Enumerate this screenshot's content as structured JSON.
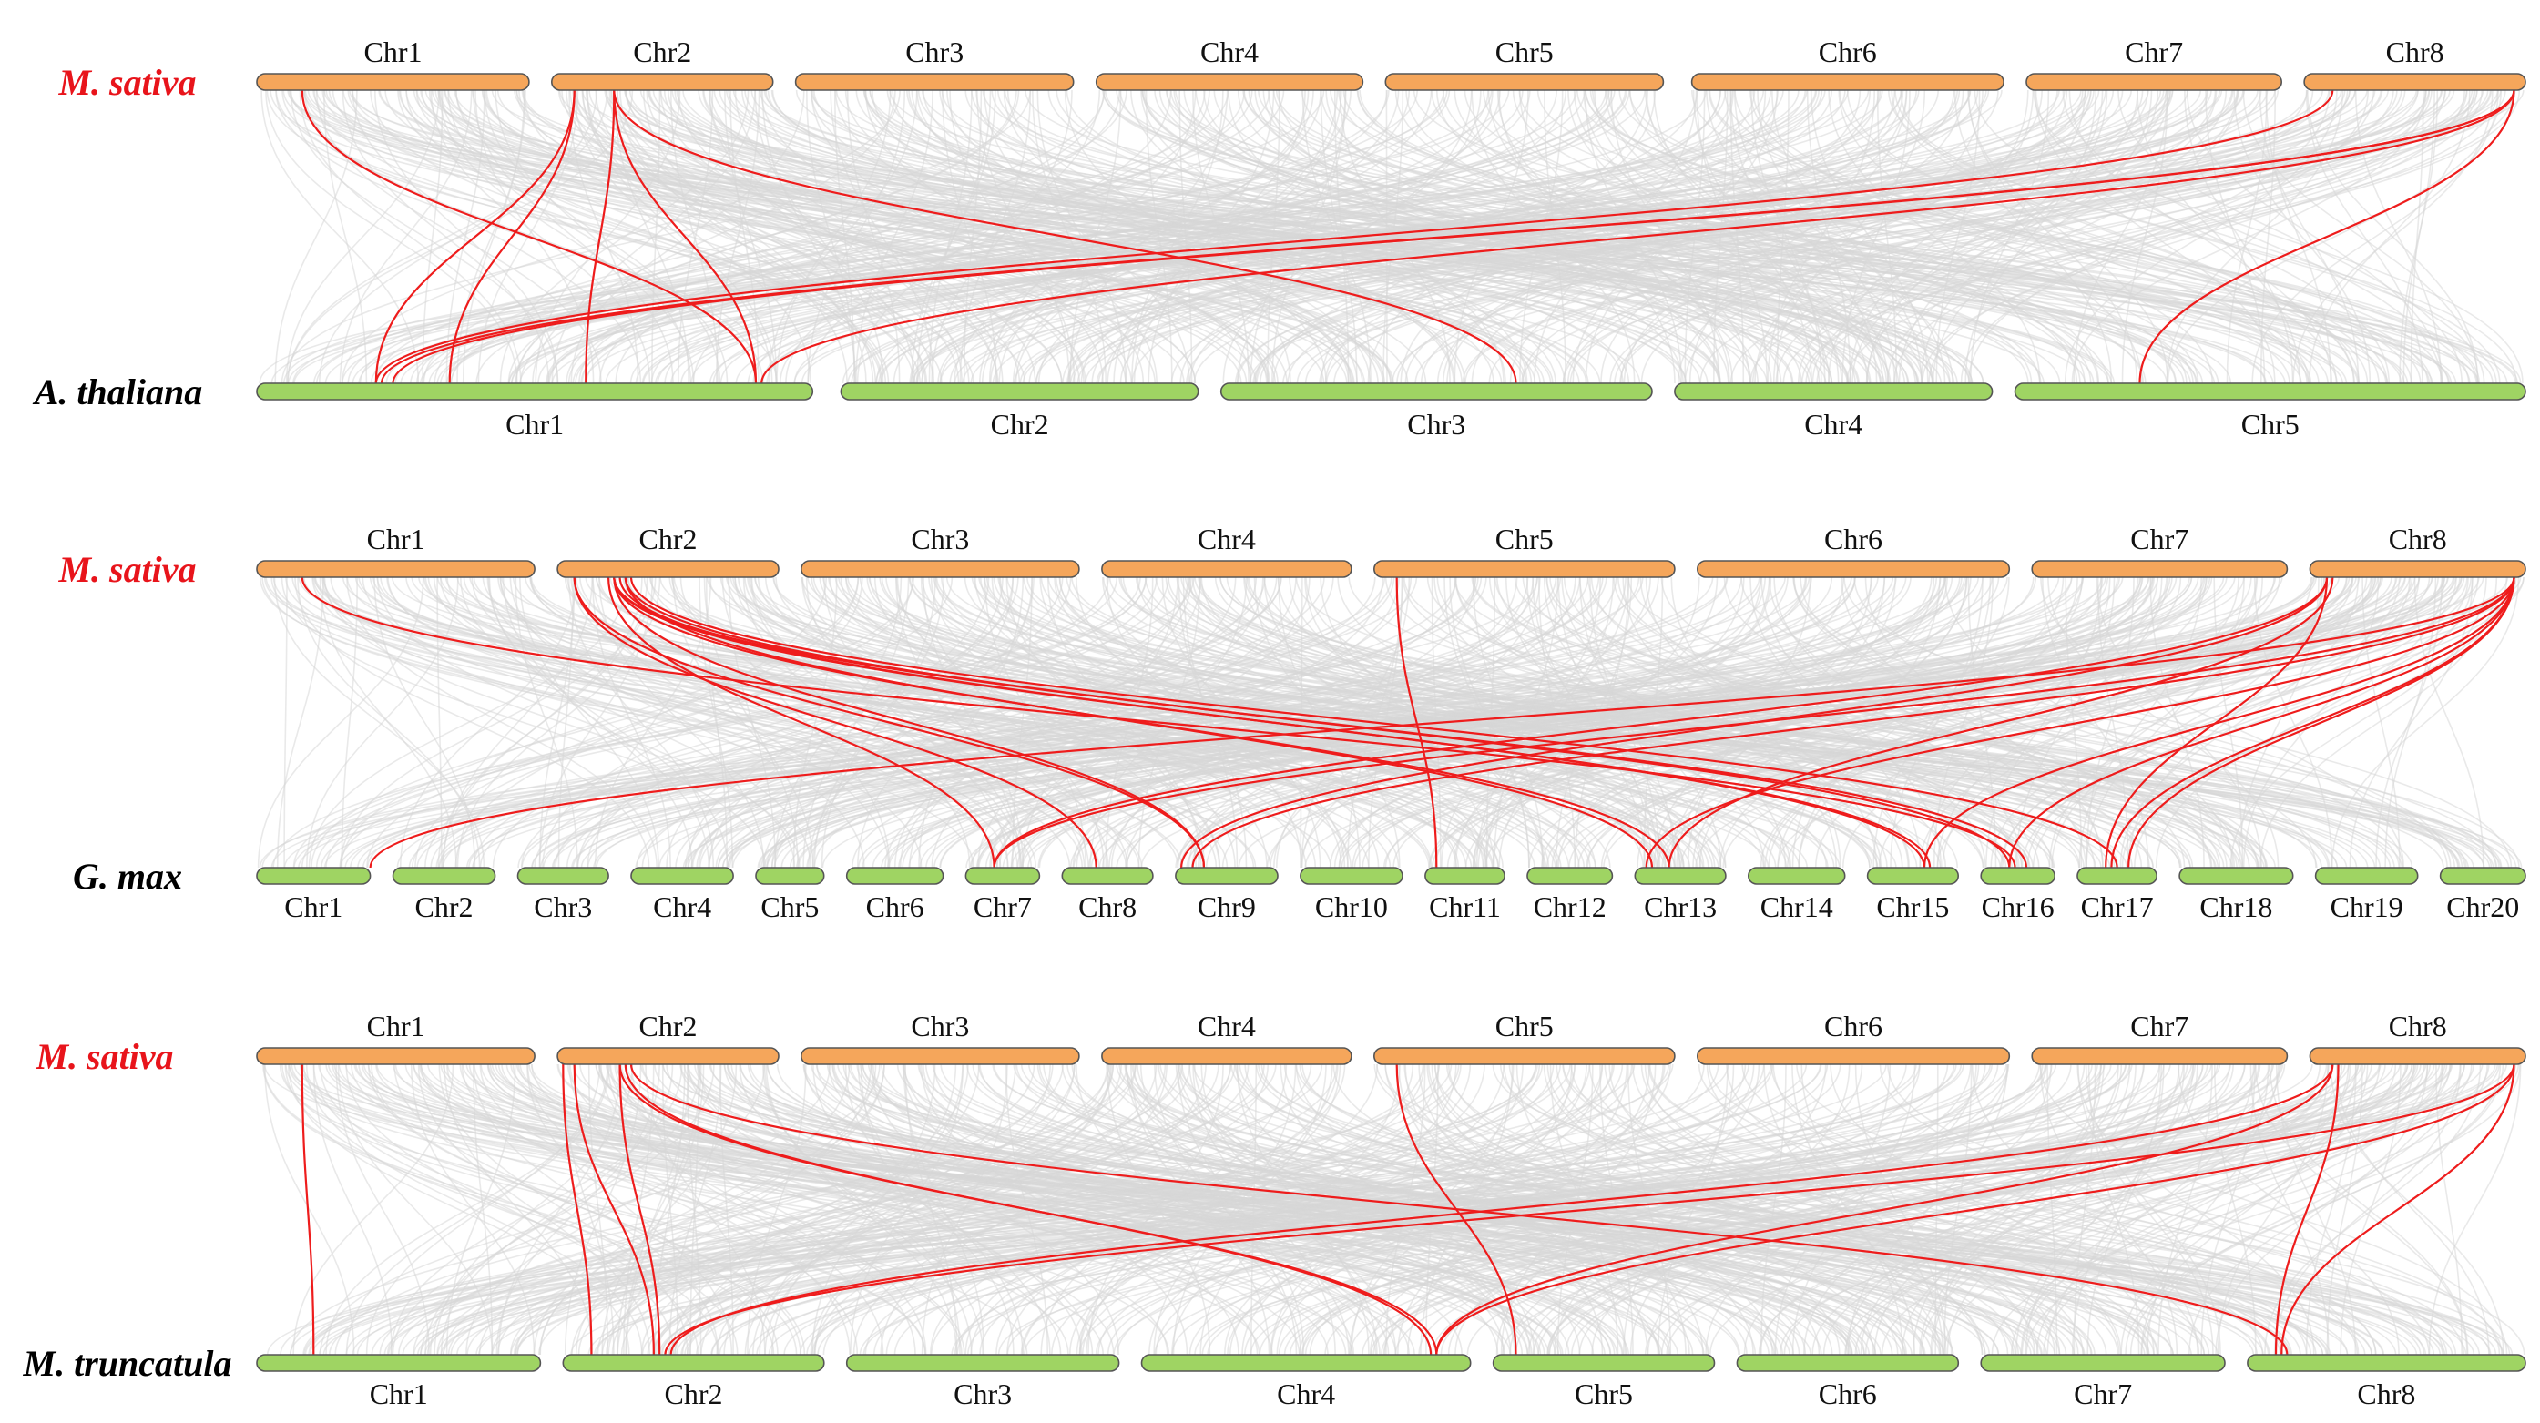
{
  "colors": {
    "query_chr": "#f5a65b",
    "target_chr": "#9fd463",
    "background_link": "#d7d7d7",
    "highlight_link": "#ee1c1c",
    "query_label": "#e8141b",
    "target_label": "#000000"
  },
  "panels": [
    {
      "name": "panel-a-thaliana",
      "query": {
        "species": "M. sativa",
        "chromosomes": [
          {
            "label": "Chr1",
            "start": 0,
            "end": 4.8
          },
          {
            "label": "Chr2",
            "start": 5.2,
            "end": 9.1
          },
          {
            "label": "Chr3",
            "start": 9.5,
            "end": 14.4
          },
          {
            "label": "Chr4",
            "start": 14.8,
            "end": 19.5
          },
          {
            "label": "Chr5",
            "start": 19.9,
            "end": 24.8
          },
          {
            "label": "Chr6",
            "start": 25.3,
            "end": 30.8
          },
          {
            "label": "Chr7",
            "start": 31.2,
            "end": 35.7
          },
          {
            "label": "Chr8",
            "start": 36.1,
            "end": 40.0
          }
        ]
      },
      "target": {
        "species": "A. thaliana",
        "chromosomes": [
          {
            "label": "Chr1",
            "start": 0,
            "end": 9.8
          },
          {
            "label": "Chr2",
            "start": 10.3,
            "end": 16.6
          },
          {
            "label": "Chr3",
            "start": 17.0,
            "end": 24.6
          },
          {
            "label": "Chr4",
            "start": 25.0,
            "end": 30.6
          },
          {
            "label": "Chr5",
            "start": 31.0,
            "end": 40.0
          }
        ]
      },
      "highlight_links": [
        [
          0.8,
          8.8
        ],
        [
          5.6,
          2.1
        ],
        [
          5.6,
          3.4
        ],
        [
          6.3,
          5.8
        ],
        [
          6.3,
          8.8
        ],
        [
          6.3,
          22.2
        ],
        [
          36.6,
          2.1
        ],
        [
          39.8,
          2.2
        ],
        [
          39.8,
          2.4
        ],
        [
          39.8,
          8.9
        ],
        [
          39.8,
          33.2
        ]
      ]
    },
    {
      "name": "panel-g-max",
      "query": {
        "species": "M. sativa",
        "chromosomes": [
          {
            "label": "Chr1",
            "start": 0,
            "end": 4.9
          },
          {
            "label": "Chr2",
            "start": 5.3,
            "end": 9.2
          },
          {
            "label": "Chr3",
            "start": 9.6,
            "end": 14.5
          },
          {
            "label": "Chr4",
            "start": 14.9,
            "end": 19.3
          },
          {
            "label": "Chr5",
            "start": 19.7,
            "end": 25.0
          },
          {
            "label": "Chr6",
            "start": 25.4,
            "end": 30.9
          },
          {
            "label": "Chr7",
            "start": 31.3,
            "end": 35.8
          },
          {
            "label": "Chr8",
            "start": 36.2,
            "end": 40.0
          }
        ]
      },
      "target": {
        "species": "G. max",
        "chromosomes": [
          {
            "label": "Chr1",
            "start": 0,
            "end": 2.0
          },
          {
            "label": "Chr2",
            "start": 2.4,
            "end": 4.2
          },
          {
            "label": "Chr3",
            "start": 4.6,
            "end": 6.2
          },
          {
            "label": "Chr4",
            "start": 6.6,
            "end": 8.4
          },
          {
            "label": "Chr5",
            "start": 8.8,
            "end": 10.0
          },
          {
            "label": "Chr6",
            "start": 10.4,
            "end": 12.1
          },
          {
            "label": "Chr7",
            "start": 12.5,
            "end": 13.8
          },
          {
            "label": "Chr8",
            "start": 14.2,
            "end": 15.8
          },
          {
            "label": "Chr9",
            "start": 16.2,
            "end": 18.0
          },
          {
            "label": "Chr10",
            "start": 18.4,
            "end": 20.2
          },
          {
            "label": "Chr11",
            "start": 20.6,
            "end": 22.0
          },
          {
            "label": "Chr12",
            "start": 22.4,
            "end": 23.9
          },
          {
            "label": "Chr13",
            "start": 24.3,
            "end": 25.9
          },
          {
            "label": "Chr14",
            "start": 26.3,
            "end": 28.0
          },
          {
            "label": "Chr15",
            "start": 28.4,
            "end": 30.0
          },
          {
            "label": "Chr16",
            "start": 30.4,
            "end": 31.7
          },
          {
            "label": "Chr17",
            "start": 32.1,
            "end": 33.5
          },
          {
            "label": "Chr18",
            "start": 33.9,
            "end": 35.9
          },
          {
            "label": "Chr19",
            "start": 36.3,
            "end": 38.1
          },
          {
            "label": "Chr20",
            "start": 38.5,
            "end": 40.0
          }
        ]
      },
      "highlight_links": [
        [
          0.8,
          31.0
        ],
        [
          5.6,
          14.8
        ],
        [
          5.6,
          16.7
        ],
        [
          6.2,
          13.0
        ],
        [
          6.3,
          16.7
        ],
        [
          6.3,
          24.9
        ],
        [
          6.3,
          29.5
        ],
        [
          6.3,
          31.2
        ],
        [
          6.4,
          29.4
        ],
        [
          6.5,
          24.6
        ],
        [
          6.5,
          30.9
        ],
        [
          6.6,
          32.8
        ],
        [
          20.1,
          20.8
        ],
        [
          36.5,
          13.0
        ],
        [
          36.5,
          16.3
        ],
        [
          36.6,
          24.9
        ],
        [
          36.5,
          32.6
        ],
        [
          39.8,
          2.0
        ],
        [
          39.8,
          13.0
        ],
        [
          39.8,
          16.5
        ],
        [
          39.8,
          24.5
        ],
        [
          39.8,
          29.4
        ],
        [
          39.8,
          30.9
        ],
        [
          39.8,
          32.7
        ],
        [
          39.8,
          33.0
        ]
      ]
    },
    {
      "name": "panel-m-truncatula",
      "query": {
        "species": "M. sativa",
        "chromosomes": [
          {
            "label": "Chr1",
            "start": 0,
            "end": 4.9
          },
          {
            "label": "Chr2",
            "start": 5.3,
            "end": 9.2
          },
          {
            "label": "Chr3",
            "start": 9.6,
            "end": 14.5
          },
          {
            "label": "Chr4",
            "start": 14.9,
            "end": 19.3
          },
          {
            "label": "Chr5",
            "start": 19.7,
            "end": 25.0
          },
          {
            "label": "Chr6",
            "start": 25.4,
            "end": 30.9
          },
          {
            "label": "Chr7",
            "start": 31.3,
            "end": 35.8
          },
          {
            "label": "Chr8",
            "start": 36.2,
            "end": 40.0
          }
        ]
      },
      "target": {
        "species": "M. truncatula",
        "chromosomes": [
          {
            "label": "Chr1",
            "start": 0,
            "end": 5.0
          },
          {
            "label": "Chr2",
            "start": 5.4,
            "end": 10.0
          },
          {
            "label": "Chr3",
            "start": 10.4,
            "end": 15.2
          },
          {
            "label": "Chr4",
            "start": 15.6,
            "end": 21.4
          },
          {
            "label": "Chr5",
            "start": 21.8,
            "end": 25.7
          },
          {
            "label": "Chr6",
            "start": 26.1,
            "end": 30.0
          },
          {
            "label": "Chr7",
            "start": 30.4,
            "end": 34.7
          },
          {
            "label": "Chr8",
            "start": 35.1,
            "end": 40.0
          }
        ]
      },
      "highlight_links": [
        [
          0.8,
          1.0
        ],
        [
          5.4,
          5.9
        ],
        [
          5.6,
          7.0
        ],
        [
          6.4,
          7.1
        ],
        [
          6.4,
          20.8
        ],
        [
          6.5,
          20.7
        ],
        [
          6.6,
          35.8
        ],
        [
          20.1,
          22.2
        ],
        [
          36.6,
          7.3
        ],
        [
          36.6,
          20.8
        ],
        [
          36.7,
          35.6
        ],
        [
          39.8,
          7.2
        ],
        [
          39.8,
          20.8
        ],
        [
          39.8,
          35.7
        ]
      ]
    }
  ]
}
